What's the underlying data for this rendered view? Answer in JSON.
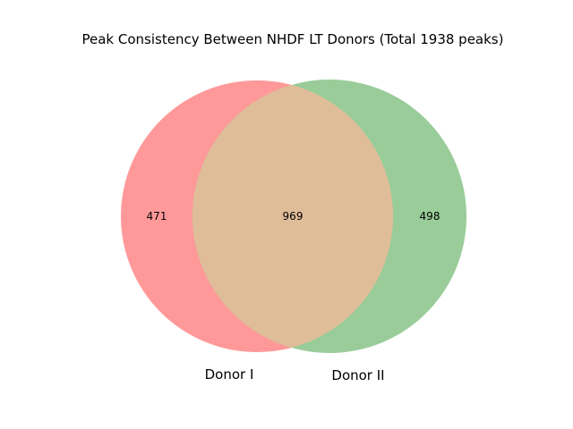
{
  "title": "Peak Consistency Between NHDF LT Donors (Total 1938 peaks)",
  "sets": [
    {
      "label": "Donor I",
      "color": "#ff9999"
    },
    {
      "label": "Donor II",
      "color": "#99cc99"
    }
  ],
  "regions": {
    "only_a": "471",
    "both": "969",
    "only_b": "498"
  },
  "overlap_color": "#e0bd99",
  "chart_data": {
    "type": "venn",
    "title": "Peak Consistency Between NHDF LT Donors (Total 1938 peaks)",
    "sets": [
      "Donor I",
      "Donor II"
    ],
    "values": {
      "Donor I only": 471,
      "Donor I & Donor II": 969,
      "Donor II only": 498
    },
    "total": 1938
  }
}
